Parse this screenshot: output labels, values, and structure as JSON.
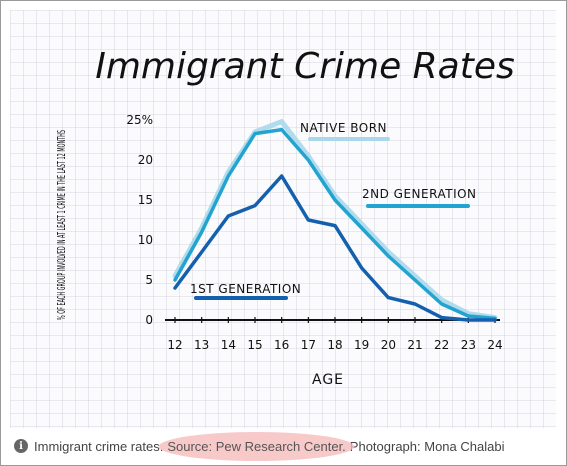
{
  "caption": {
    "icon": "info-icon",
    "text": "Immigrant crime rates.",
    "source": "Source: Pew Research Center.",
    "photo_credit": "Photograph: Mona Chalabi"
  },
  "colors": {
    "native_born": "#a9d8ec",
    "second_generation": "#23a3cf",
    "first_generation": "#1560ae",
    "grid": "#c9cad6",
    "ink": "#111111"
  },
  "chart_data": {
    "type": "line",
    "title": "Immigrant Crime Rates",
    "xlabel": "AGE",
    "ylabel": "% OF EACH GROUP INVOLVED IN AT LEAST 1 CRIME IN THE LAST 12 MONTHS",
    "xlim": [
      12,
      24
    ],
    "ylim": [
      0,
      25
    ],
    "xticks": [
      "12",
      "13",
      "14",
      "15",
      "16",
      "17",
      "18",
      "19",
      "20",
      "21",
      "22",
      "23",
      "24"
    ],
    "yticks": [
      "0",
      "5",
      "10",
      "15",
      "20",
      "25%"
    ],
    "x": [
      12,
      13,
      14,
      15,
      16,
      17,
      18,
      19,
      20,
      21,
      22,
      23,
      24
    ],
    "series": [
      {
        "name": "NATIVE BORN",
        "values": [
          5.5,
          11.5,
          18.5,
          23.5,
          24.8,
          20.5,
          15.5,
          12.0,
          8.5,
          5.5,
          2.5,
          0.8,
          0.3
        ]
      },
      {
        "name": "2ND GENERATION",
        "values": [
          5.0,
          11.0,
          18.0,
          23.3,
          23.8,
          20.0,
          15.0,
          11.5,
          8.0,
          5.0,
          2.0,
          0.5,
          0.2
        ]
      },
      {
        "name": "1ST GENERATION",
        "values": [
          4.0,
          8.5,
          13.0,
          14.3,
          18.0,
          12.5,
          11.8,
          6.5,
          2.8,
          2.0,
          0.3,
          0.0,
          0.0
        ]
      }
    ],
    "grid": true,
    "legend": "inline labels"
  }
}
